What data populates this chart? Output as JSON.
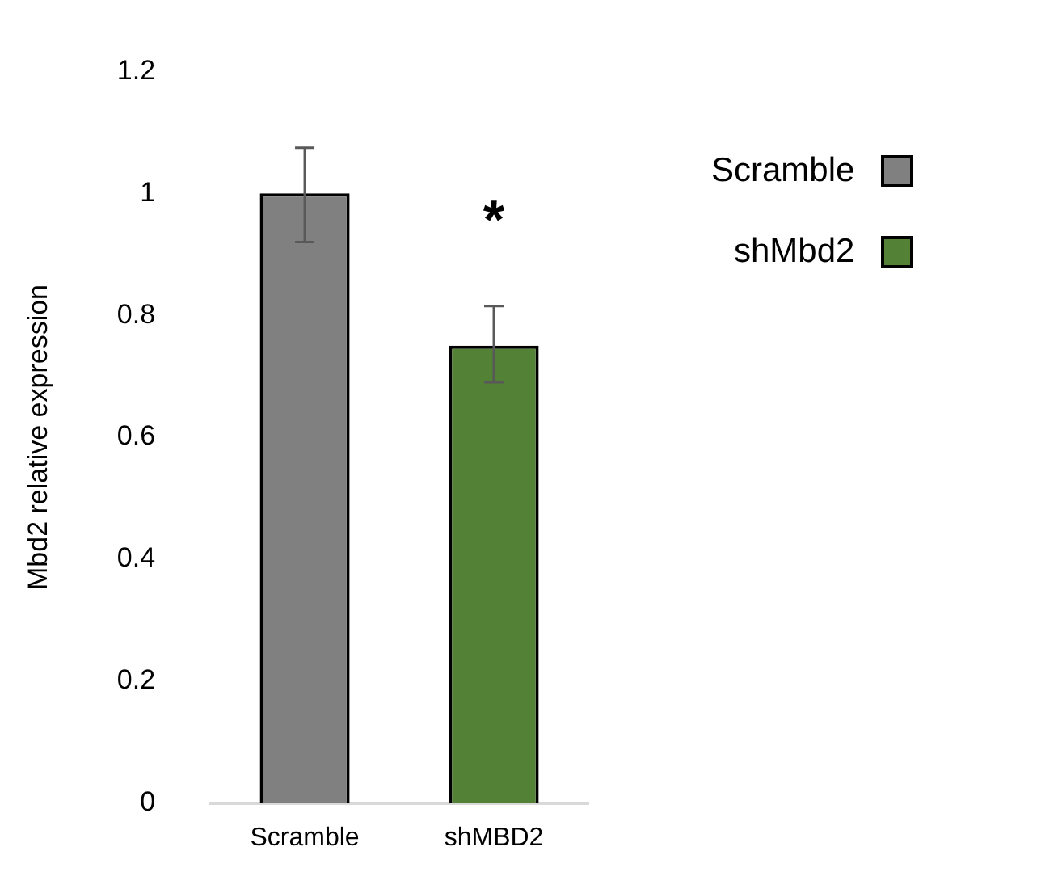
{
  "chart_data": {
    "type": "bar",
    "ylabel": "Mbd2 relative expression",
    "categories": [
      "Scramble",
      "shMBD2"
    ],
    "series": [
      {
        "name": "Scramble",
        "color": "#808080",
        "values": [
          1.0,
          null
        ],
        "errors": [
          [
            0.92,
            1.075
          ],
          null
        ]
      },
      {
        "name": "shMbd2",
        "color": "#538135",
        "values": [
          null,
          0.75
        ],
        "errors": [
          null,
          [
            0.69,
            0.815
          ]
        ]
      }
    ],
    "ylim": [
      0,
      1.2
    ],
    "yticks": [
      0,
      0.2,
      0.4,
      0.6,
      0.8,
      1,
      1.2
    ],
    "grid": false,
    "legend": "right",
    "annotations": [
      "*"
    ]
  }
}
